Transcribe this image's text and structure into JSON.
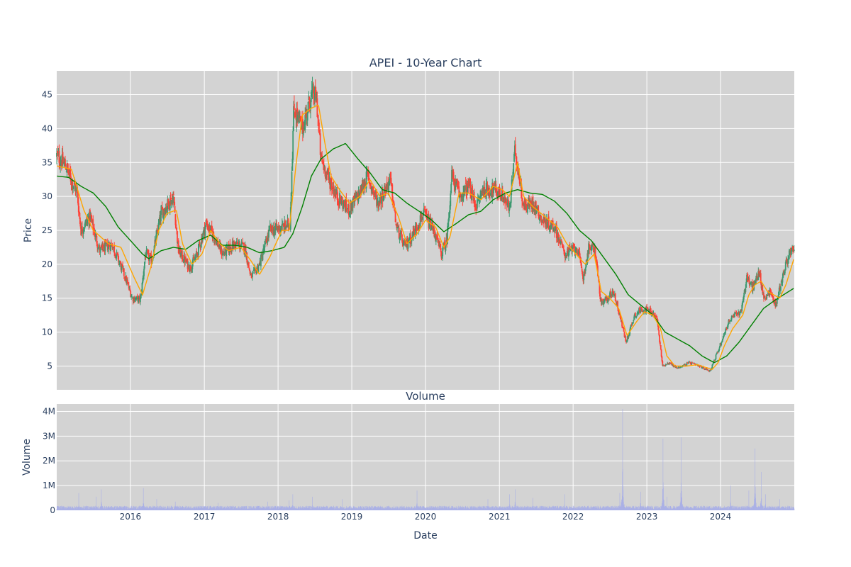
{
  "chart_data": [
    {
      "type": "candlestick",
      "title": "APEI - 10-Year Chart",
      "ylabel": "Price",
      "xlabel": "",
      "xlim": [
        "2015-01-01",
        "2024-12-31"
      ],
      "ylim": [
        1.5,
        48.5
      ],
      "yticks": [
        5,
        10,
        15,
        20,
        25,
        30,
        35,
        40,
        45
      ],
      "grid": true,
      "legend": "none",
      "colors": {
        "increasing": "#3d9970",
        "decreasing": "#ff4136",
        "ma_short": "#ffa500",
        "ma_long": "#008000",
        "plot_bg": "#d3d3d3",
        "grid": "#ffffff"
      },
      "price_path": [
        [
          "2015-01-02",
          36.0
        ],
        [
          "2015-02-15",
          34.5
        ],
        [
          "2015-03-20",
          32.0
        ],
        [
          "2015-04-10",
          31.0
        ],
        [
          "2015-05-01",
          25.0
        ],
        [
          "2015-06-15",
          27.0
        ],
        [
          "2015-08-01",
          22.0
        ],
        [
          "2015-10-01",
          23.0
        ],
        [
          "2015-12-01",
          18.5
        ],
        [
          "2016-01-10",
          15.0
        ],
        [
          "2016-02-20",
          14.8
        ],
        [
          "2016-03-15",
          21.5
        ],
        [
          "2016-04-15",
          20.5
        ],
        [
          "2016-06-01",
          27.5
        ],
        [
          "2016-08-01",
          30.0
        ],
        [
          "2016-08-25",
          22.0
        ],
        [
          "2016-10-20",
          19.5
        ],
        [
          "2016-11-20",
          21.0
        ],
        [
          "2017-01-10",
          26.0
        ],
        [
          "2017-02-20",
          24.0
        ],
        [
          "2017-04-01",
          21.5
        ],
        [
          "2017-06-01",
          23.0
        ],
        [
          "2017-07-20",
          22.5
        ],
        [
          "2017-08-20",
          18.0
        ],
        [
          "2017-10-01",
          20.0
        ],
        [
          "2017-11-20",
          25.0
        ],
        [
          "2018-02-01",
          25.5
        ],
        [
          "2018-03-01",
          26.0
        ],
        [
          "2018-03-20",
          43.0
        ],
        [
          "2018-05-01",
          40.0
        ],
        [
          "2018-06-15",
          45.0
        ],
        [
          "2018-07-10",
          44.5
        ],
        [
          "2018-08-01",
          35.5
        ],
        [
          "2018-09-10",
          32.5
        ],
        [
          "2018-10-20",
          30.0
        ],
        [
          "2018-12-15",
          28.0
        ],
        [
          "2019-02-10",
          30.5
        ],
        [
          "2019-03-20",
          33.0
        ],
        [
          "2019-05-10",
          29.0
        ],
        [
          "2019-07-10",
          32.5
        ],
        [
          "2019-08-10",
          25.5
        ],
        [
          "2019-09-20",
          22.5
        ],
        [
          "2019-11-10",
          25.0
        ],
        [
          "2019-12-20",
          27.5
        ],
        [
          "2020-02-10",
          25.0
        ],
        [
          "2020-03-20",
          21.5
        ],
        [
          "2020-04-15",
          23.5
        ],
        [
          "2020-05-10",
          33.0
        ],
        [
          "2020-06-20",
          30.0
        ],
        [
          "2020-08-01",
          31.5
        ],
        [
          "2020-09-10",
          28.5
        ],
        [
          "2020-10-10",
          31.0
        ],
        [
          "2020-12-10",
          31.0
        ],
        [
          "2021-01-20",
          30.0
        ],
        [
          "2021-02-20",
          28.0
        ],
        [
          "2021-03-20",
          37.0
        ],
        [
          "2021-05-01",
          28.5
        ],
        [
          "2021-06-20",
          29.0
        ],
        [
          "2021-08-01",
          26.5
        ],
        [
          "2021-10-01",
          25.5
        ],
        [
          "2021-11-20",
          21.5
        ],
        [
          "2022-01-20",
          22.5
        ],
        [
          "2022-02-20",
          18.0
        ],
        [
          "2022-03-20",
          22.5
        ],
        [
          "2022-04-20",
          22.0
        ],
        [
          "2022-05-20",
          14.0
        ],
        [
          "2022-06-20",
          15.0
        ],
        [
          "2022-07-20",
          16.0
        ],
        [
          "2022-08-20",
          12.5
        ],
        [
          "2022-09-20",
          8.5
        ],
        [
          "2022-11-01",
          12.5
        ],
        [
          "2022-12-10",
          13.5
        ],
        [
          "2023-01-20",
          13.0
        ],
        [
          "2023-02-20",
          12.0
        ],
        [
          "2023-03-20",
          5.0
        ],
        [
          "2023-04-20",
          5.5
        ],
        [
          "2023-06-01",
          4.7
        ],
        [
          "2023-08-01",
          5.5
        ],
        [
          "2023-10-01",
          4.8
        ],
        [
          "2023-11-10",
          4.3
        ],
        [
          "2023-12-10",
          6.5
        ],
        [
          "2024-01-10",
          9.0
        ],
        [
          "2024-02-10",
          11.5
        ],
        [
          "2024-03-10",
          12.5
        ],
        [
          "2024-04-10",
          13.0
        ],
        [
          "2024-05-10",
          18.0
        ],
        [
          "2024-06-10",
          16.5
        ],
        [
          "2024-07-10",
          19.0
        ],
        [
          "2024-08-01",
          15.0
        ],
        [
          "2024-09-01",
          16.0
        ],
        [
          "2024-10-01",
          14.0
        ],
        [
          "2024-11-01",
          18.0
        ],
        [
          "2024-12-05",
          21.5
        ],
        [
          "2024-12-31",
          22.0
        ]
      ],
      "ma_short": [
        [
          "2015-01-02",
          34.5
        ],
        [
          "2015-03-15",
          34.0
        ],
        [
          "2015-05-15",
          28.0
        ],
        [
          "2015-07-01",
          25.0
        ],
        [
          "2015-09-15",
          23.0
        ],
        [
          "2015-11-15",
          22.5
        ],
        [
          "2016-01-20",
          18.0
        ],
        [
          "2016-03-01",
          15.5
        ],
        [
          "2016-04-15",
          20.0
        ],
        [
          "2016-05-20",
          25.0
        ],
        [
          "2016-07-01",
          27.5
        ],
        [
          "2016-08-15",
          28.0
        ],
        [
          "2016-09-15",
          23.0
        ],
        [
          "2016-11-01",
          20.0
        ],
        [
          "2016-12-20",
          21.5
        ],
        [
          "2017-02-01",
          25.0
        ],
        [
          "2017-03-20",
          23.0
        ],
        [
          "2017-05-01",
          22.0
        ],
        [
          "2017-07-01",
          22.5
        ],
        [
          "2017-08-20",
          20.5
        ],
        [
          "2017-10-01",
          18.5
        ],
        [
          "2017-11-20",
          21.0
        ],
        [
          "2018-01-20",
          25.0
        ],
        [
          "2018-02-25",
          25.0
        ],
        [
          "2018-04-01",
          35.0
        ],
        [
          "2018-05-01",
          42.0
        ],
        [
          "2018-06-15",
          43.0
        ],
        [
          "2018-07-20",
          43.5
        ],
        [
          "2018-08-20",
          38.0
        ],
        [
          "2018-09-20",
          33.0
        ],
        [
          "2018-11-01",
          31.0
        ],
        [
          "2018-12-20",
          29.0
        ],
        [
          "2019-02-10",
          30.0
        ],
        [
          "2019-04-01",
          32.5
        ],
        [
          "2019-05-20",
          30.0
        ],
        [
          "2019-07-01",
          30.5
        ],
        [
          "2019-08-20",
          27.0
        ],
        [
          "2019-10-01",
          23.0
        ],
        [
          "2019-11-20",
          24.5
        ],
        [
          "2020-01-01",
          26.5
        ],
        [
          "2020-02-20",
          25.5
        ],
        [
          "2020-04-01",
          22.5
        ],
        [
          "2020-05-01",
          24.0
        ],
        [
          "2020-06-15",
          30.5
        ],
        [
          "2020-08-01",
          30.5
        ],
        [
          "2020-10-01",
          29.5
        ],
        [
          "2020-12-01",
          31.5
        ],
        [
          "2021-01-15",
          31.0
        ],
        [
          "2021-02-20",
          30.0
        ],
        [
          "2021-04-01",
          35.0
        ],
        [
          "2021-05-01",
          30.0
        ],
        [
          "2021-06-15",
          28.5
        ],
        [
          "2021-08-15",
          27.0
        ],
        [
          "2021-10-15",
          25.5
        ],
        [
          "2021-12-01",
          23.0
        ],
        [
          "2022-01-15",
          21.5
        ],
        [
          "2022-03-01",
          20.0
        ],
        [
          "2022-04-15",
          21.5
        ],
        [
          "2022-05-20",
          16.0
        ],
        [
          "2022-07-01",
          15.0
        ],
        [
          "2022-08-15",
          13.5
        ],
        [
          "2022-09-25",
          9.5
        ],
        [
          "2022-11-10",
          11.5
        ],
        [
          "2022-12-20",
          13.0
        ],
        [
          "2023-02-01",
          12.5
        ],
        [
          "2023-03-10",
          10.5
        ],
        [
          "2023-04-10",
          6.5
        ],
        [
          "2023-05-20",
          5.0
        ],
        [
          "2023-07-15",
          5.0
        ],
        [
          "2023-09-10",
          5.2
        ],
        [
          "2023-11-20",
          4.5
        ],
        [
          "2023-12-20",
          5.5
        ],
        [
          "2024-01-20",
          8.0
        ],
        [
          "2024-03-01",
          10.5
        ],
        [
          "2024-04-20",
          12.5
        ],
        [
          "2024-05-20",
          15.5
        ],
        [
          "2024-06-20",
          17.0
        ],
        [
          "2024-07-20",
          17.5
        ],
        [
          "2024-08-20",
          16.0
        ],
        [
          "2024-09-20",
          15.5
        ],
        [
          "2024-10-20",
          15.0
        ],
        [
          "2024-11-20",
          17.0
        ],
        [
          "2024-12-31",
          21.0
        ]
      ],
      "ma_long": [
        [
          "2015-01-02",
          33.0
        ],
        [
          "2015-03-01",
          32.8
        ],
        [
          "2015-05-01",
          31.5
        ],
        [
          "2015-07-01",
          30.5
        ],
        [
          "2015-09-01",
          28.5
        ],
        [
          "2015-11-01",
          25.5
        ],
        [
          "2016-01-01",
          23.5
        ],
        [
          "2016-03-01",
          21.5
        ],
        [
          "2016-04-01",
          20.8
        ],
        [
          "2016-06-01",
          22.0
        ],
        [
          "2016-08-01",
          22.5
        ],
        [
          "2016-10-01",
          22.2
        ],
        [
          "2016-12-01",
          23.5
        ],
        [
          "2017-02-01",
          24.3
        ],
        [
          "2017-04-01",
          22.8
        ],
        [
          "2017-06-01",
          22.8
        ],
        [
          "2017-08-01",
          22.5
        ],
        [
          "2017-10-01",
          21.7
        ],
        [
          "2017-12-01",
          22.0
        ],
        [
          "2018-02-01",
          22.5
        ],
        [
          "2018-03-15",
          24.5
        ],
        [
          "2018-05-01",
          28.5
        ],
        [
          "2018-06-15",
          33.0
        ],
        [
          "2018-08-01",
          35.5
        ],
        [
          "2018-10-01",
          37.0
        ],
        [
          "2018-12-01",
          37.8
        ],
        [
          "2019-02-01",
          35.5
        ],
        [
          "2019-04-01",
          33.5
        ],
        [
          "2019-06-01",
          31.0
        ],
        [
          "2019-08-01",
          30.5
        ],
        [
          "2019-10-01",
          29.0
        ],
        [
          "2019-12-01",
          27.8
        ],
        [
          "2020-02-01",
          26.5
        ],
        [
          "2020-04-01",
          24.8
        ],
        [
          "2020-06-01",
          26.0
        ],
        [
          "2020-08-01",
          27.3
        ],
        [
          "2020-10-01",
          27.8
        ],
        [
          "2020-12-01",
          29.5
        ],
        [
          "2021-02-01",
          30.5
        ],
        [
          "2021-04-01",
          31.0
        ],
        [
          "2021-06-01",
          30.5
        ],
        [
          "2021-08-01",
          30.3
        ],
        [
          "2021-10-01",
          29.3
        ],
        [
          "2021-12-01",
          27.5
        ],
        [
          "2022-02-01",
          25.0
        ],
        [
          "2022-04-01",
          23.5
        ],
        [
          "2022-06-01",
          21.0
        ],
        [
          "2022-08-01",
          18.5
        ],
        [
          "2022-10-01",
          15.5
        ],
        [
          "2022-12-01",
          14.0
        ],
        [
          "2023-02-01",
          12.5
        ],
        [
          "2023-04-01",
          10.0
        ],
        [
          "2023-06-01",
          9.0
        ],
        [
          "2023-08-01",
          8.0
        ],
        [
          "2023-10-01",
          6.5
        ],
        [
          "2023-12-01",
          5.5
        ],
        [
          "2024-02-01",
          6.5
        ],
        [
          "2024-04-01",
          8.5
        ],
        [
          "2024-06-01",
          11.0
        ],
        [
          "2024-08-01",
          13.5
        ],
        [
          "2024-10-01",
          14.8
        ],
        [
          "2024-12-31",
          16.5
        ]
      ]
    },
    {
      "type": "bar",
      "title": "Volume",
      "ylabel": "Volume",
      "xlabel": "Date",
      "xlim": [
        "2015-01-01",
        "2024-12-31"
      ],
      "ylim": [
        0,
        4300000
      ],
      "yticks": [
        0,
        1000000,
        2000000,
        3000000,
        4000000
      ],
      "ytick_labels": [
        "0",
        "1M",
        "2M",
        "3M",
        "4M"
      ],
      "xtick_labels": [
        "2016",
        "2017",
        "2018",
        "2019",
        "2020",
        "2021",
        "2022",
        "2023",
        "2024"
      ],
      "grid": true,
      "colors": {
        "bar": "#aab0e6",
        "plot_bg": "#d3d3d3",
        "grid": "#ffffff"
      },
      "baseline_volume": 130000,
      "volume_spikes": [
        [
          "2015-04-20",
          700000
        ],
        [
          "2015-07-15",
          550000
        ],
        [
          "2015-08-10",
          850000
        ],
        [
          "2016-03-05",
          900000
        ],
        [
          "2016-05-10",
          450000
        ],
        [
          "2016-08-10",
          350000
        ],
        [
          "2017-03-10",
          300000
        ],
        [
          "2017-11-10",
          350000
        ],
        [
          "2018-02-25",
          400000
        ],
        [
          "2018-03-15",
          650000
        ],
        [
          "2018-06-20",
          550000
        ],
        [
          "2018-11-15",
          450000
        ],
        [
          "2019-11-20",
          800000
        ],
        [
          "2020-11-05",
          450000
        ],
        [
          "2021-02-20",
          650000
        ],
        [
          "2021-03-20",
          850000
        ],
        [
          "2021-06-15",
          500000
        ],
        [
          "2021-11-20",
          650000
        ],
        [
          "2022-08-20",
          700000
        ],
        [
          "2022-09-03",
          4100000
        ],
        [
          "2022-12-01",
          750000
        ],
        [
          "2023-03-22",
          2900000
        ],
        [
          "2023-04-10",
          550000
        ],
        [
          "2023-06-20",
          2950000
        ],
        [
          "2024-02-20",
          1000000
        ],
        [
          "2024-05-20",
          800000
        ],
        [
          "2024-06-20",
          2500000
        ],
        [
          "2024-07-20",
          1550000
        ],
        [
          "2024-08-10",
          650000
        ],
        [
          "2024-10-20",
          450000
        ]
      ]
    }
  ]
}
